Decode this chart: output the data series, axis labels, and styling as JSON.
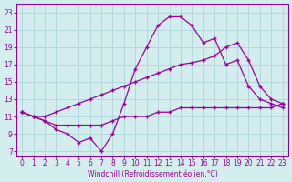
{
  "xlabel": "Windchill (Refroidissement éolien,°C)",
  "bg_color": "#d4eef0",
  "grid_color": "#b0d8dc",
  "line_color": "#990099",
  "x_ticks": [
    0,
    1,
    2,
    3,
    4,
    5,
    6,
    7,
    8,
    9,
    10,
    11,
    12,
    13,
    14,
    15,
    16,
    17,
    18,
    19,
    20,
    21,
    22,
    23
  ],
  "y_ticks": [
    7,
    9,
    11,
    13,
    15,
    17,
    19,
    21,
    23
  ],
  "xlim": [
    -0.5,
    23.5
  ],
  "ylim": [
    6.5,
    24
  ],
  "line1_x": [
    0,
    1,
    2,
    3,
    4,
    5,
    6,
    7,
    8,
    9,
    10,
    11,
    12,
    13,
    14,
    15,
    16,
    17,
    18,
    19,
    20,
    21,
    22,
    23
  ],
  "line1_y": [
    11.5,
    11.0,
    10.5,
    9.5,
    9.0,
    8.0,
    8.5,
    7.0,
    9.0,
    12.5,
    16.5,
    19.0,
    21.5,
    22.5,
    22.5,
    21.5,
    19.5,
    20.0,
    17.0,
    17.5,
    14.5,
    13.0,
    12.5,
    12.0
  ],
  "line2_x": [
    0,
    1,
    2,
    3,
    4,
    5,
    6,
    7,
    8,
    9,
    10,
    11,
    12,
    13,
    14,
    15,
    16,
    17,
    18,
    19,
    20,
    21,
    22,
    23
  ],
  "line2_y": [
    11.5,
    11.0,
    11.0,
    11.5,
    12.0,
    12.5,
    13.0,
    13.5,
    14.0,
    14.5,
    15.0,
    15.5,
    16.0,
    16.5,
    17.0,
    17.2,
    17.5,
    18.0,
    19.0,
    19.5,
    17.5,
    14.5,
    13.0,
    12.5
  ],
  "line3_x": [
    0,
    1,
    2,
    3,
    4,
    5,
    6,
    7,
    8,
    9,
    10,
    11,
    12,
    13,
    14,
    15,
    16,
    17,
    18,
    19,
    20,
    21,
    22,
    23
  ],
  "line3_y": [
    11.5,
    11.0,
    10.5,
    10.0,
    10.0,
    10.0,
    10.0,
    10.0,
    10.5,
    11.0,
    11.0,
    11.0,
    11.5,
    11.5,
    12.0,
    12.0,
    12.0,
    12.0,
    12.0,
    12.0,
    12.0,
    12.0,
    12.0,
    12.5
  ]
}
